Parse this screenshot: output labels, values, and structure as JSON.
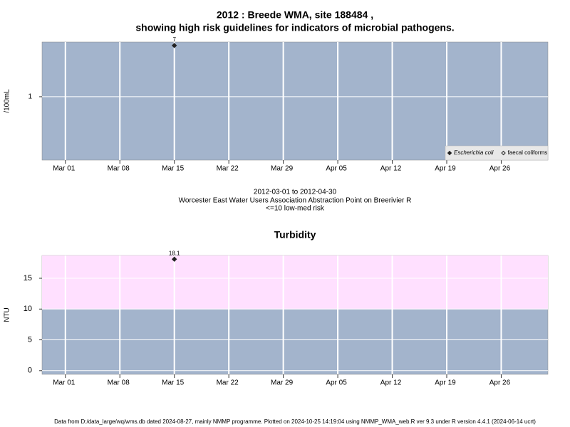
{
  "chart_data": [
    {
      "type": "scatter",
      "title": [
        "2012 : Breede WMA, site 188484 ,",
        "showing high risk guidelines for indicators of microbial pathogens."
      ],
      "ylabel": "/100mL",
      "log_y": true,
      "ylim": [
        0.09,
        8
      ],
      "yticks": [
        1
      ],
      "xlim": [
        "2012-02-27",
        "2012-05-02"
      ],
      "xticks": [
        {
          "value": "2012-03-01",
          "label": "Mar 01"
        },
        {
          "value": "2012-03-08",
          "label": "Mar 08"
        },
        {
          "value": "2012-03-15",
          "label": "Mar 15"
        },
        {
          "value": "2012-03-22",
          "label": "Mar 22"
        },
        {
          "value": "2012-03-29",
          "label": "Mar 29"
        },
        {
          "value": "2012-04-05",
          "label": "Apr 05"
        },
        {
          "value": "2012-04-12",
          "label": "Apr 12"
        },
        {
          "value": "2012-04-19",
          "label": "Apr 19"
        },
        {
          "value": "2012-04-26",
          "label": "Apr 26"
        }
      ],
      "grid": true,
      "background": "#a3b4cc",
      "legend": "lower right",
      "series": [
        {
          "name": "Escherichia coli",
          "marker": "filled",
          "color": "#222222",
          "x": [
            "2012-03-15"
          ],
          "values": [
            7
          ]
        },
        {
          "name": "faecal coliforms",
          "marker": "open",
          "color": "#222222",
          "x": [],
          "values": []
        }
      ],
      "caption": [
        "2012-03-01 to 2012-04-30",
        "Worcester East Water Users Association Abstraction Point on Breerivier R",
        "<=10 low-med risk"
      ]
    },
    {
      "type": "scatter",
      "title": "Turbidity",
      "ylabel": "NTU",
      "log_y": false,
      "ylim": [
        -0.6,
        18.7
      ],
      "yticks": [
        0,
        5,
        10,
        15
      ],
      "xlim": [
        "2012-02-27",
        "2012-05-02"
      ],
      "xticks": [
        {
          "value": "2012-03-01",
          "label": "Mar 01"
        },
        {
          "value": "2012-03-08",
          "label": "Mar 08"
        },
        {
          "value": "2012-03-15",
          "label": "Mar 15"
        },
        {
          "value": "2012-03-22",
          "label": "Mar 22"
        },
        {
          "value": "2012-03-29",
          "label": "Mar 29"
        },
        {
          "value": "2012-04-05",
          "label": "Apr 05"
        },
        {
          "value": "2012-04-12",
          "label": "Apr 12"
        },
        {
          "value": "2012-04-19",
          "label": "Apr 19"
        },
        {
          "value": "2012-04-26",
          "label": "Apr 26"
        }
      ],
      "grid": true,
      "background": "#a3b4cc",
      "bands": [
        {
          "from": 10,
          "color": "#ffe0ff"
        }
      ],
      "color": "#222222",
      "x": [
        "2012-03-15"
      ],
      "values": [
        18.1
      ]
    }
  ],
  "footer": "Data from D:/data_large/wq/wms.db dated 2024-08-27, mainly NMMP programme. Plotted on 2024-10-25 14:19:04 using NMMP_WMA_web.R ver 9.3 under R version 4.4.1 (2024-06-14 ucrt)"
}
